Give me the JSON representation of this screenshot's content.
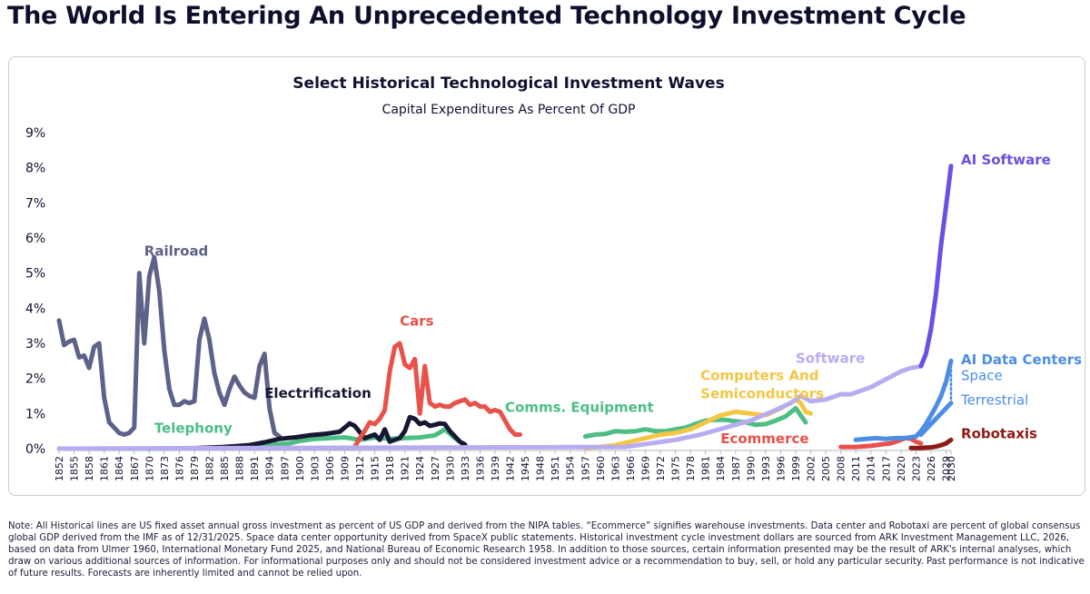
{
  "page": {
    "title": "The World Is Entering An Unprecedented Technology Investment Cycle",
    "footnote": "Note: All Historical lines are US fixed asset annual gross investment as percent of US GDP and derived from the NIPA tables. “Ecommerce” signifies warehouse investments. Data center and Robotaxi are percent of global consensus global GDP derived from the IMF as of 12/31/2025. Space data center opportunity derived from SpaceX public statements. Historical investment cycle investment dollars are sourced from ARK Investment Management LLC, 2026, based on data from Ulmer 1960, International Monetary Fund 2025, and National Bureau of Economic Research 1958. In addition to those sources, certain information presented may be the result of ARK's internal analyses, which draw on various additional sources of information. For informational purposes only and should not be considered investment advice or a recommendation to buy, sell, or hold any particular security. Past performance is not indicative of future results. Forecasts are inherently limited and cannot be relied upon."
  },
  "chart_data": {
    "type": "line",
    "title": "Select Historical Technological Investment Waves",
    "subtitle": "Capital Expenditures As Percent Of GDP",
    "xlabel": "",
    "ylabel": "",
    "xlim": [
      1852,
      2030
    ],
    "ylim": [
      0,
      9
    ],
    "y_ticks": [
      "0%",
      "1%",
      "2%",
      "3%",
      "4%",
      "5%",
      "6%",
      "7%",
      "8%",
      "9%"
    ],
    "x_ticks": [
      "1852",
      "1855",
      "1858",
      "1861",
      "1864",
      "1867",
      "1870",
      "1873",
      "1876",
      "1879",
      "1882",
      "1885",
      "1888",
      "1891",
      "1894",
      "1897",
      "1900",
      "1903",
      "1906",
      "1909",
      "1912",
      "1915",
      "1918",
      "1921",
      "1924",
      "1927",
      "1930",
      "1933",
      "1936",
      "1939",
      "1942",
      "1945",
      "1948",
      "1951",
      "1954",
      "1957",
      "1960",
      "1963",
      "1966",
      "1969",
      "1972",
      "1975",
      "1978",
      "1981",
      "1984",
      "1987",
      "1990",
      "1993",
      "1996",
      "1999",
      "2002",
      "2005",
      "2008",
      "2011",
      "2014",
      "2017",
      "2020",
      "2023",
      "2026",
      "2029",
      "2030"
    ],
    "grid": false,
    "legend": "inline labels",
    "series": [
      {
        "name": "Railroad",
        "color": "#5d6289",
        "label_at": [
          1869,
          5.5
        ],
        "x": [
          1852,
          1853,
          1854,
          1855,
          1856,
          1857,
          1858,
          1859,
          1860,
          1861,
          1862,
          1863,
          1864,
          1865,
          1866,
          1867,
          1868,
          1869,
          1870,
          1871,
          1872,
          1873,
          1874,
          1875,
          1876,
          1877,
          1878,
          1879,
          1880,
          1881,
          1882,
          1883,
          1884,
          1885,
          1886,
          1887,
          1888,
          1889,
          1890,
          1891,
          1892,
          1893,
          1894,
          1895,
          1896
        ],
        "y": [
          3.65,
          2.95,
          3.05,
          3.1,
          2.6,
          2.65,
          2.3,
          2.9,
          3.0,
          1.45,
          0.75,
          0.6,
          0.45,
          0.4,
          0.45,
          0.6,
          5.0,
          3.0,
          4.9,
          5.45,
          4.5,
          2.8,
          1.7,
          1.25,
          1.25,
          1.35,
          1.3,
          1.35,
          3.1,
          3.7,
          3.1,
          2.15,
          1.6,
          1.25,
          1.7,
          2.05,
          1.8,
          1.6,
          1.5,
          1.45,
          2.35,
          2.7,
          1.15,
          0.45,
          0.35
        ]
      },
      {
        "name": "Telephony",
        "color": "#4cbe83",
        "label_at": [
          1871,
          0.45
        ],
        "x": [
          1852,
          1870,
          1880,
          1890,
          1895,
          1898,
          1900,
          1903,
          1906,
          1909,
          1912,
          1915,
          1918,
          1921,
          1924,
          1927,
          1929,
          1931,
          1933
        ],
        "y": [
          0.0,
          0.0,
          0.02,
          0.05,
          0.12,
          0.15,
          0.22,
          0.28,
          0.3,
          0.32,
          0.25,
          0.32,
          0.28,
          0.3,
          0.32,
          0.38,
          0.55,
          0.3,
          0.1
        ]
      },
      {
        "name": "Electrification",
        "color": "#161833",
        "label_at": [
          1893,
          1.45
        ],
        "x": [
          1880,
          1885,
          1890,
          1893,
          1896,
          1899,
          1902,
          1905,
          1908,
          1910,
          1911,
          1913,
          1915,
          1916,
          1917,
          1918,
          1919,
          1920,
          1921,
          1922,
          1923,
          1924,
          1925,
          1926,
          1927,
          1928,
          1929,
          1930,
          1931,
          1932,
          1933
        ],
        "y": [
          0.02,
          0.05,
          0.1,
          0.18,
          0.28,
          0.32,
          0.38,
          0.42,
          0.48,
          0.72,
          0.65,
          0.3,
          0.4,
          0.25,
          0.55,
          0.2,
          0.25,
          0.3,
          0.5,
          0.9,
          0.85,
          0.7,
          0.75,
          0.65,
          0.68,
          0.72,
          0.7,
          0.5,
          0.35,
          0.2,
          0.12
        ]
      },
      {
        "name": "Cars",
        "color": "#e9514b",
        "label_at": [
          1920,
          3.5
        ],
        "x": [
          1911,
          1912,
          1913,
          1914,
          1915,
          1916,
          1917,
          1918,
          1919,
          1920,
          1921,
          1922,
          1923,
          1924,
          1925,
          1926,
          1927,
          1928,
          1929,
          1930,
          1931,
          1932,
          1933,
          1934,
          1935,
          1936,
          1937,
          1938,
          1939,
          1940,
          1941,
          1942,
          1943,
          1944
        ],
        "y": [
          0.05,
          0.3,
          0.5,
          0.75,
          0.7,
          0.85,
          1.1,
          2.2,
          2.9,
          3.0,
          2.4,
          2.3,
          2.55,
          1.0,
          2.35,
          1.3,
          1.2,
          1.25,
          1.2,
          1.2,
          1.3,
          1.35,
          1.4,
          1.25,
          1.3,
          1.2,
          1.2,
          1.05,
          1.1,
          1.05,
          0.8,
          0.55,
          0.4,
          0.4
        ]
      },
      {
        "name": "Comms. Equipment",
        "color": "#4cbe83",
        "label_at": [
          1941,
          1.05
        ],
        "x": [
          1957,
          1959,
          1961,
          1963,
          1965,
          1967,
          1969,
          1971,
          1973,
          1975,
          1977,
          1979,
          1981,
          1983,
          1985,
          1987,
          1989,
          1991,
          1993,
          1995,
          1997,
          1999,
          2000,
          2001
        ],
        "y": [
          0.35,
          0.4,
          0.42,
          0.5,
          0.48,
          0.5,
          0.55,
          0.5,
          0.5,
          0.55,
          0.6,
          0.7,
          0.8,
          0.82,
          0.82,
          0.78,
          0.75,
          0.68,
          0.7,
          0.8,
          0.92,
          1.15,
          0.95,
          0.75
        ]
      },
      {
        "name": "Computers And\nSemiconductors",
        "color": "#f3c644",
        "label_at": [
          1980,
          1.95
        ],
        "x": [
          1957,
          1960,
          1963,
          1966,
          1969,
          1972,
          1975,
          1978,
          1981,
          1984,
          1987,
          1990,
          1993,
          1996,
          1998,
          1999,
          2000,
          2001,
          2002
        ],
        "y": [
          0.02,
          0.05,
          0.1,
          0.2,
          0.3,
          0.4,
          0.45,
          0.55,
          0.75,
          0.95,
          1.05,
          1.0,
          0.95,
          1.15,
          1.3,
          1.4,
          1.3,
          1.05,
          1.0
        ]
      },
      {
        "name": "Software",
        "color": "#b8acf0",
        "label_at": [
          1999,
          2.45
        ],
        "x": [
          1852,
          1965,
          1970,
          1975,
          1980,
          1985,
          1990,
          1995,
          1998,
          2000,
          2002,
          2005,
          2008,
          2010,
          2012,
          2014,
          2016,
          2018,
          2020,
          2021,
          2022,
          2023,
          2024
        ],
        "y": [
          0.0,
          0.05,
          0.15,
          0.25,
          0.4,
          0.6,
          0.8,
          1.1,
          1.3,
          1.5,
          1.35,
          1.4,
          1.55,
          1.55,
          1.65,
          1.75,
          1.9,
          2.05,
          2.2,
          2.25,
          2.3,
          2.32,
          2.35
        ]
      },
      {
        "name": "Ecommerce",
        "color": "#e9514b",
        "label_at": [
          1984,
          0.15
        ],
        "x": [
          2008,
          2011,
          2014,
          2016,
          2018,
          2020,
          2021,
          2022,
          2023,
          2024
        ],
        "y": [
          0.05,
          0.05,
          0.08,
          0.12,
          0.15,
          0.25,
          0.3,
          0.28,
          0.2,
          0.15
        ]
      },
      {
        "name": "AI Software",
        "color": "#6c4fe3",
        "label_at": [
          2032,
          8.1
        ],
        "x": [
          2024,
          2025,
          2026,
          2027,
          2028,
          2029,
          2030
        ],
        "y": [
          2.35,
          2.7,
          3.4,
          4.4,
          5.8,
          6.9,
          8.05
        ]
      },
      {
        "name": "AI Data Centers",
        "color": "#4d8de5",
        "label_at": [
          2032,
          2.4
        ],
        "x": [
          2011,
          2013,
          2015,
          2017,
          2019,
          2021,
          2023,
          2024,
          2025,
          2026,
          2027,
          2028,
          2029,
          2030
        ],
        "y": [
          0.25,
          0.28,
          0.3,
          0.28,
          0.3,
          0.3,
          0.35,
          0.5,
          0.7,
          0.95,
          1.2,
          1.5,
          1.9,
          2.5
        ]
      },
      {
        "name": "Space",
        "color": "#4d8de5",
        "label_at": [
          2032,
          1.95
        ],
        "x": [
          2030,
          2030
        ],
        "y": [
          2.5,
          1.3
        ]
      },
      {
        "name": "Terrestrial",
        "color": "#4d8de5",
        "label_at": [
          2032,
          1.25
        ],
        "x": [
          2024,
          2025,
          2026,
          2027,
          2028,
          2029,
          2030
        ],
        "y": [
          0.4,
          0.55,
          0.7,
          0.85,
          1.0,
          1.15,
          1.3
        ]
      },
      {
        "name": "Robotaxis",
        "color": "#8d1b16",
        "label_at": [
          2032,
          0.3
        ],
        "x": [
          2022,
          2024,
          2026,
          2027,
          2028,
          2029,
          2030
        ],
        "y": [
          0.02,
          0.02,
          0.04,
          0.06,
          0.1,
          0.15,
          0.25
        ]
      }
    ]
  }
}
